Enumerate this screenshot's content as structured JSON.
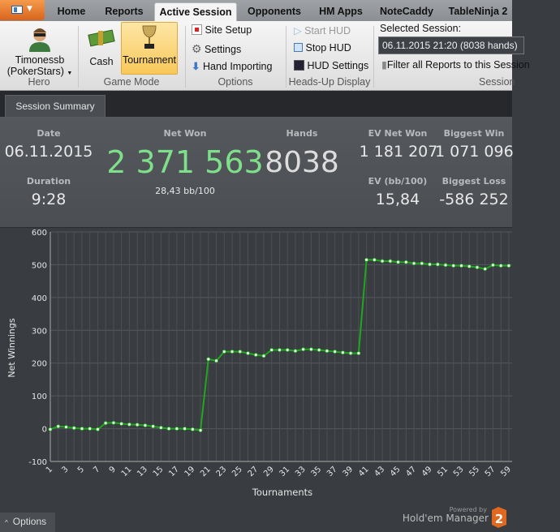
{
  "tabs": [
    "Home",
    "Reports",
    "Active Session",
    "Opponents",
    "HM Apps",
    "NoteCaddy",
    "TableNinja 2"
  ],
  "ribbon": {
    "hero": {
      "name": "Timonessb",
      "site": "(PokerStars)",
      "group": "Hero"
    },
    "game_mode": {
      "cash": "Cash",
      "tournament": "Tournament",
      "group": "Game Mode"
    },
    "options": {
      "site_setup": "Site Setup",
      "settings": "Settings",
      "hand_importing": "Hand Importing",
      "group": "Options"
    },
    "hud": {
      "start": "Start HUD",
      "stop": "Stop HUD",
      "settings": "HUD Settings",
      "group": "Heads-Up Display"
    },
    "session": {
      "label": "Selected Session:",
      "value": "06.11.2015 21:20 (8038 hands)",
      "filter": "Filter all Reports to this Session",
      "group": "Session"
    }
  },
  "session_tab": "Session Summary",
  "stats": {
    "date_label": "Date",
    "date": "06.11.2015",
    "duration_label": "Duration",
    "duration": "9:28",
    "net_won_label": "Net Won",
    "net_won": "2 371 563",
    "bb100": "28,43 bb/100",
    "hands_label": "Hands",
    "hands": "8038",
    "ev_net_won_label": "EV Net Won",
    "ev_net_won": "1 181 207",
    "biggest_win_label": "Biggest Win",
    "biggest_win": "1 071 096",
    "ev_bb100_label": "EV (bb/100)",
    "ev_bb100": "15,84",
    "biggest_loss_label": "Biggest Loss",
    "biggest_loss": "-586 252",
    "net_won_color": "#7ee08a"
  },
  "chart_data": {
    "type": "line",
    "xlabel": "Tournaments",
    "ylabel": "Net Winnings",
    "ylim": [
      -100,
      600
    ],
    "yticks": [
      -100,
      0,
      100,
      200,
      300,
      400,
      500,
      600
    ],
    "grid": true,
    "line_color": "#1fa81f",
    "x": [
      1,
      2,
      3,
      4,
      5,
      6,
      7,
      8,
      9,
      10,
      11,
      12,
      13,
      14,
      15,
      16,
      17,
      18,
      19,
      20,
      21,
      22,
      23,
      24,
      25,
      26,
      27,
      28,
      29,
      30,
      31,
      32,
      33,
      34,
      35,
      36,
      37,
      38,
      39,
      40,
      41,
      42,
      43,
      44,
      45,
      46,
      47,
      48,
      49,
      50,
      51,
      52,
      53,
      54,
      55,
      56,
      57,
      58,
      59
    ],
    "values": [
      -2,
      7,
      5,
      2,
      0,
      0,
      -2,
      17,
      18,
      15,
      13,
      12,
      10,
      7,
      3,
      0,
      0,
      0,
      -2,
      -5,
      212,
      207,
      235,
      235,
      235,
      230,
      225,
      222,
      240,
      240,
      240,
      237,
      242,
      242,
      240,
      237,
      235,
      232,
      230,
      230,
      515,
      515,
      511,
      511,
      508,
      508,
      504,
      504,
      501,
      501,
      499,
      497,
      497,
      495,
      492,
      487,
      499,
      497,
      497
    ]
  },
  "footer": {
    "options": "Options",
    "powered_by": "Powered by",
    "brand": "Hold'em Manager",
    "brand_num": "2"
  }
}
